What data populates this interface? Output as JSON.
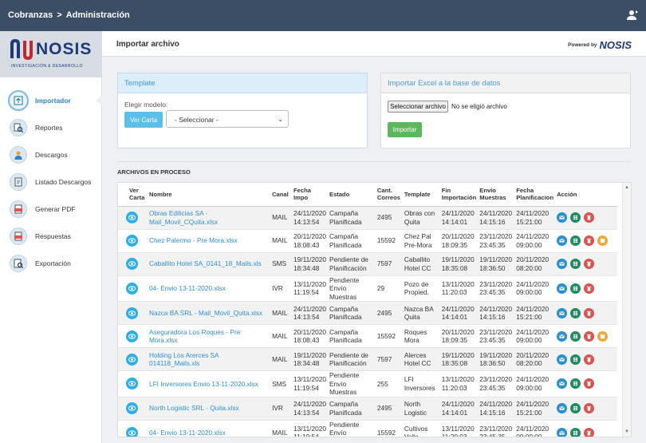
{
  "topbar": {
    "crumb1": "Cobranzas",
    "crumb2": "Administración"
  },
  "logo": {
    "name": "NOSIS",
    "tagline": "INVESTIGACIÓN & DESARROLLO"
  },
  "sidebar": {
    "items": [
      {
        "label": "Importador",
        "icon": "upload-icon"
      },
      {
        "label": "Reportes",
        "icon": "report-icon"
      },
      {
        "label": "Descargos",
        "icon": "person-icon"
      },
      {
        "label": "Listado Descargos",
        "icon": "list-icon"
      },
      {
        "label": "Generar PDF",
        "icon": "pdf-icon"
      },
      {
        "label": "Respuestas",
        "icon": "pdf-icon"
      },
      {
        "label": "Exportación",
        "icon": "export-icon"
      }
    ]
  },
  "header": {
    "title": "Importar archivo",
    "powered_by": "Powered by",
    "powered_logo": "NOSIS"
  },
  "template_card": {
    "title": "Template",
    "label": "Elegir modelo:",
    "button": "Ver Carta",
    "select_value": "- Seleccionar -"
  },
  "excel_card": {
    "title": "Importar Excel a la base de datos",
    "file_button": "Seleccionar archivo",
    "file_status": "No se eligió archivo",
    "import_button": "Importar"
  },
  "section_title": "ARCHIVOS EN PROCESO",
  "table": {
    "headers": [
      "Ver Carta",
      "Nombre",
      "Canal",
      "Fecha Impo",
      "Estado",
      "Cant. Correos",
      "Template",
      "Fin Importación",
      "Envío Muestras",
      "Fecha Planificacion",
      "Acción"
    ],
    "rows": [
      {
        "nombre": "Obras Edilicias SA - Mail_Movil_CQuita.xlsx",
        "canal": "MAIL",
        "fecha": "24/11/2020 14:13:54",
        "estado": "Campaña Planificada",
        "cant": "2495",
        "template": "Obras con Quita",
        "fin": "24/11/2020 14:14:01",
        "envio": "24/11/2020 14:15:16",
        "plan": "24/11/2020 15:21:00",
        "extra": false
      },
      {
        "nombre": "Chez Palermo - Pre Mora.xlsx",
        "canal": "MAIL",
        "fecha": "20/11/2020 18:08:43",
        "estado": "Campaña Planificada",
        "cant": "15592",
        "template": "Chez Pal Pre-Mora",
        "fin": "20/11/2020 18:09:35",
        "envio": "23/11/2020 23:45:35",
        "plan": "24/11/2020 09:00:00",
        "extra": true
      },
      {
        "nombre": "Caballito Hotel SA_0141_18_Mails.xls",
        "canal": "SMS",
        "fecha": "19/11/2020 18:34:48",
        "estado": "Pendiente de Planificación",
        "cant": "7597",
        "template": "Caballito Hotel CC",
        "fin": "19/11/2020 18:35:08",
        "envio": "19/11/2020 18:36:50",
        "plan": "20/11/2020 08:20:00",
        "extra": false
      },
      {
        "nombre": "04- Envio 13-11-2020.xlsx",
        "canal": "IVR",
        "fecha": "13/11/2020 11:19:54",
        "estado": "Pendiente Envío Muestras",
        "cant": "29",
        "template": "Pozo de Propied.",
        "fin": "13/11/2020 11:20:03",
        "envio": "23/11/2020 23:45:35",
        "plan": "24/11/2020 09:00:00",
        "extra": false
      },
      {
        "nombre": "Nazca BA SRL - Mail_Movil_Quita.xlsx",
        "canal": "MAIL",
        "fecha": "24/11/2020 14:13:54",
        "estado": "Campaña Planificada",
        "cant": "2495",
        "template": "Nazca BA Quita",
        "fin": "24/11/2020 14:14:01",
        "envio": "24/11/2020 14:15:16",
        "plan": "24/11/2020 15:21:00",
        "extra": false
      },
      {
        "nombre": "Aseguradora Los Roques - Pre Mora.xlsx",
        "canal": "MAIL",
        "fecha": "20/11/2020 18:08:43",
        "estado": "Campaña Planificada",
        "cant": "15592",
        "template": "Roques Mora",
        "fin": "20/11/2020 18:09:35",
        "envio": "23/11/2020 23:45:35",
        "plan": "24/11/2020 09:00:00",
        "extra": true
      },
      {
        "nombre": "Holding Los Arerces SA 014118_Mails.xls",
        "canal": "MAIL",
        "fecha": "19/11/2020 18:34:48",
        "estado": "Pendiente de Planificación",
        "cant": "7597",
        "template": "Alerces Hotel CC",
        "fin": "19/11/2020 18:35:08",
        "envio": "19/11/2020 18:36:50",
        "plan": "20/11/2020 08:20:00",
        "extra": false
      },
      {
        "nombre": "LFI Inversores Envio 13-11-2020.xlsx",
        "canal": "SMS",
        "fecha": "13/11/2020 11:19:54",
        "estado": "Pendiente Envío Muestras",
        "cant": "255",
        "template": "LFI Inversores",
        "fin": "13/11/2020 11:20:03",
        "envio": "23/11/2020 23:45:35",
        "plan": "24/11/2020 09:00:00",
        "extra": false
      },
      {
        "nombre": "North Logistic SRL - Quita.xlsx",
        "canal": "IVR",
        "fecha": "24/11/2020 14:13:54",
        "estado": "Campaña Planificada",
        "cant": "2495",
        "template": "North Logistic",
        "fin": "24/11/2020 14:14:01",
        "envio": "24/11/2020 14:15:16",
        "plan": "24/11/2020 15:21:00",
        "extra": false
      },
      {
        "nombre": "04- Envio 13-11-2020.xlsx",
        "canal": "MAIL",
        "fecha": "13/11/2020 11:19:54",
        "estado": "Pendiente Envío Muestras",
        "cant": "15592",
        "template": "Cultivos Valle",
        "fin": "13/11/2020 11:20:03",
        "envio": "23/11/2020 23:45:35",
        "plan": "24/11/2020 09:00:00",
        "extra": false
      }
    ]
  },
  "colors": {
    "topbar": "#3c4d66",
    "accent": "#2a86c9",
    "green": "#5cb85c",
    "action_mail": "#2a8fcf",
    "action_excel": "#1f8a63",
    "action_delete": "#d9534f",
    "action_extra": "#f0a73a"
  }
}
